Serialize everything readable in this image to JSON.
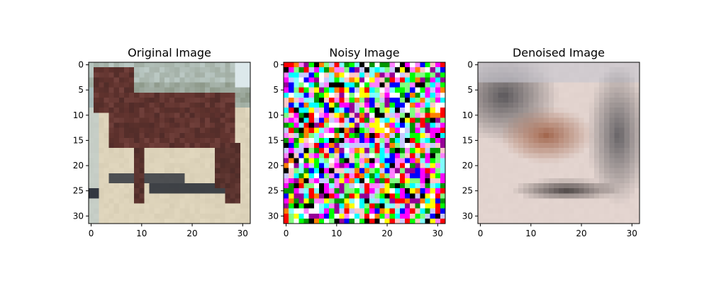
{
  "chart_data": [
    {
      "type": "heatmap",
      "title": "Original Image",
      "xlim": [
        -0.5,
        31.5
      ],
      "ylim": [
        31.5,
        -0.5
      ],
      "x_ticks": [
        0,
        10,
        20,
        30
      ],
      "y_ticks": [
        0,
        5,
        10,
        15,
        20,
        25,
        30
      ],
      "content": "32x32 RGB image of a dark brown horse standing on sandy ground"
    },
    {
      "type": "heatmap",
      "title": "Noisy Image",
      "xlim": [
        -0.5,
        31.5
      ],
      "ylim": [
        31.5,
        -0.5
      ],
      "x_ticks": [
        0,
        10,
        20,
        30
      ],
      "y_ticks": [
        0,
        5,
        10,
        15,
        20,
        25,
        30
      ],
      "content": "32x32 RGB image of saturated random noise"
    },
    {
      "type": "heatmap",
      "title": "Denoised Image",
      "xlim": [
        -0.5,
        31.5
      ],
      "ylim": [
        31.5,
        -0.5
      ],
      "x_ticks": [
        0,
        10,
        20,
        30
      ],
      "y_ticks": [
        0,
        5,
        10,
        15,
        20,
        25,
        30
      ],
      "content": "32x32 RGB image, blurred reconstruction of the horse"
    }
  ]
}
